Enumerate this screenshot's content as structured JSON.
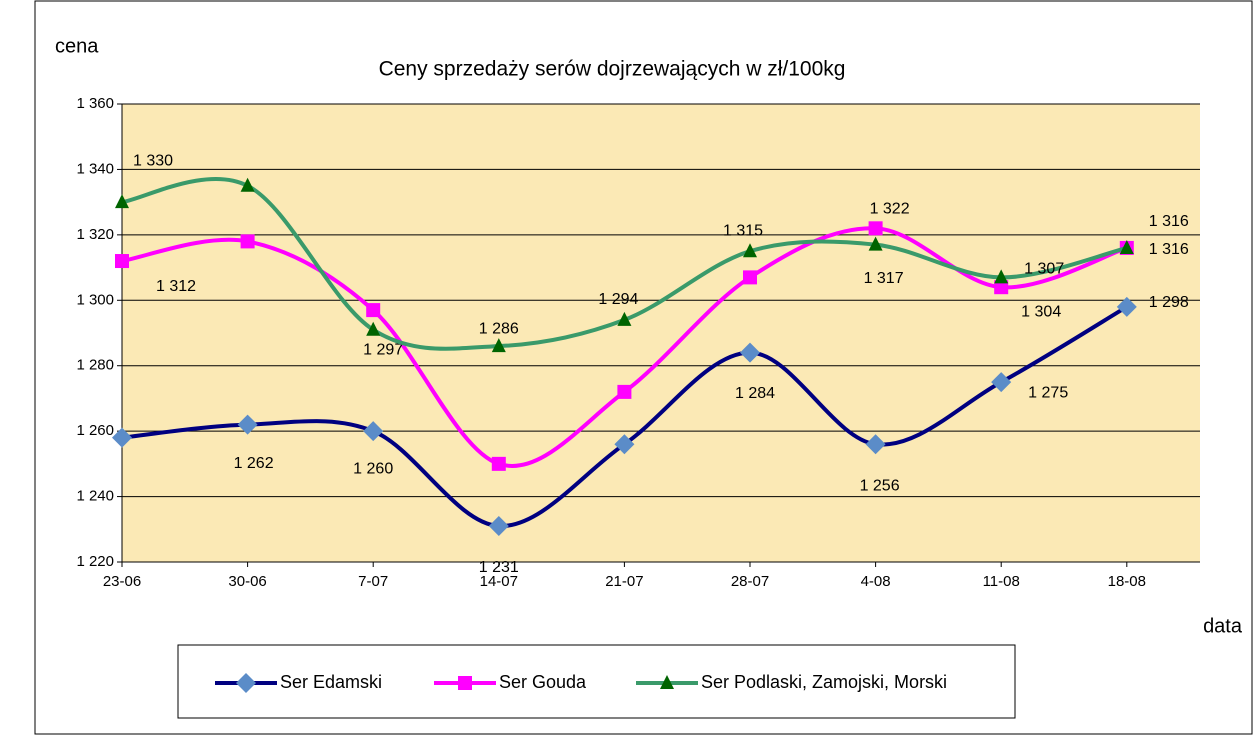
{
  "chart_data": {
    "type": "line",
    "title": "Ceny sprzedaży serów dojrzewających w zł/100kg",
    "y_label": "cena",
    "x_label": "data",
    "categories": [
      "23-06",
      "30-06",
      "7-07",
      "14-07",
      "21-07",
      "28-07",
      "4-08",
      "11-08",
      "18-08"
    ],
    "series": [
      {
        "name": "Ser Edamski",
        "color": "#000080",
        "marker_color": "#5b8cc8",
        "marker": "diamond",
        "values": [
          1258,
          1262,
          1260,
          1231,
          1256,
          1284,
          1256,
          1275,
          1298
        ],
        "value_labels": [
          null,
          "1 262",
          "1 260",
          "1 231",
          null,
          "1 284",
          "1 256",
          "1 275",
          "1 298"
        ]
      },
      {
        "name": "Ser Gouda",
        "color": "#ff00ff",
        "marker_color": "#ff00ff",
        "marker": "square",
        "values": [
          1312,
          1318,
          1297,
          1250,
          1272,
          1307,
          1322,
          1304,
          1316
        ],
        "value_labels": [
          "1 312",
          null,
          "1 297",
          null,
          null,
          null,
          "1 322",
          "1 304",
          "1 316"
        ]
      },
      {
        "name": "Ser Podlaski, Zamojski, Morski",
        "color": "#3a9a6a",
        "marker_color": "#006400",
        "marker": "triangle",
        "values": [
          1330,
          1335,
          1291,
          1286,
          1294,
          1315,
          1317,
          1307,
          1316
        ],
        "value_labels": [
          "1 330",
          null,
          null,
          "1 286",
          "1 294",
          "1 315",
          "1 317",
          "1 307",
          "1 316"
        ]
      }
    ],
    "ylim": [
      1220,
      1360
    ],
    "yticks": [
      {
        "value": 1220,
        "label": "1 220"
      },
      {
        "value": 1240,
        "label": "1 240"
      },
      {
        "value": 1260,
        "label": "1 260"
      },
      {
        "value": 1280,
        "label": "1 280"
      },
      {
        "value": 1300,
        "label": "1 300"
      },
      {
        "value": 1320,
        "label": "1 320"
      },
      {
        "value": 1340,
        "label": "1 340"
      },
      {
        "value": 1360,
        "label": "1 360"
      }
    ],
    "grid": true,
    "legend": "bottom",
    "background": "#fbe9b5"
  }
}
